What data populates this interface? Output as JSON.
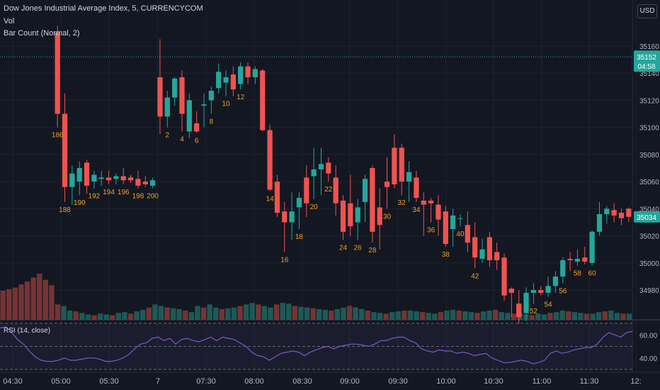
{
  "header": {
    "title": "Dow Jones Industrial Average Index, 5, CURRENCYCOM",
    "vol_label": "Vol",
    "bar_count_label": "Bar Count (Normal, 2)",
    "currency": "USD",
    "rsi_label": "RSI (14, close)"
  },
  "colors": {
    "background": "#131722",
    "up": "#26a69a",
    "down": "#ef5350",
    "bar_count_text": "#f0a020",
    "rsi_line": "#7e57c2",
    "grid": "#1e222d"
  },
  "price_axis": {
    "ticks": [
      "35160",
      "35140",
      "35120",
      "35100",
      "35080",
      "35060",
      "35040",
      "35020",
      "35000",
      "34980"
    ],
    "current_price": "35152",
    "countdown": "04:58",
    "last_price": "35034"
  },
  "rsi_axis": {
    "ticks": [
      "60.00",
      "40.00"
    ]
  },
  "time_axis": {
    "labels": [
      "04:30",
      "05:00",
      "05:30",
      "7",
      "07:30",
      "08:00",
      "08:30",
      "09:00",
      "09:30",
      "10:00",
      "10:30",
      "11:00",
      "11:30",
      "12:"
    ]
  },
  "chart_data": [
    {
      "type": "candlestick",
      "title": "Dow Jones Industrial Average Index, 5, CURRENCYCOM",
      "ylim": [
        34968,
        35172
      ],
      "ticks_y": [
        34980,
        35000,
        35020,
        35040,
        35060,
        35080,
        35100,
        35120,
        35140,
        35160
      ],
      "candles": [
        {
          "o": 35170,
          "h": 35175,
          "l": 35100,
          "c": 35110
        },
        {
          "o": 35110,
          "h": 35125,
          "l": 35045,
          "c": 35056
        },
        {
          "o": 35056,
          "h": 35072,
          "l": 35043,
          "c": 35066
        },
        {
          "o": 35060,
          "h": 35075,
          "l": 35050,
          "c": 35070
        },
        {
          "o": 35074,
          "h": 35076,
          "l": 35051,
          "c": 35057
        },
        {
          "o": 35060,
          "h": 35068,
          "l": 35055,
          "c": 35065
        },
        {
          "o": 35062,
          "h": 35068,
          "l": 35057,
          "c": 35063
        },
        {
          "o": 35063,
          "h": 35068,
          "l": 35058,
          "c": 35061
        },
        {
          "o": 35062,
          "h": 35066,
          "l": 35058,
          "c": 35064
        },
        {
          "o": 35064,
          "h": 35070,
          "l": 35058,
          "c": 35061
        },
        {
          "o": 35063,
          "h": 35065,
          "l": 35059,
          "c": 35061
        },
        {
          "o": 35062,
          "h": 35068,
          "l": 35055,
          "c": 35057
        },
        {
          "o": 35060,
          "h": 35064,
          "l": 35056,
          "c": 35058
        },
        {
          "o": 35057,
          "h": 35063,
          "l": 35055,
          "c": 35061
        },
        {
          "o": 35137,
          "h": 35165,
          "l": 35095,
          "c": 35108
        },
        {
          "o": 35108,
          "h": 35127,
          "l": 35100,
          "c": 35122
        },
        {
          "o": 35122,
          "h": 35137,
          "l": 35116,
          "c": 35136
        },
        {
          "o": 35137,
          "h": 35142,
          "l": 35097,
          "c": 35110
        },
        {
          "o": 35097,
          "h": 35125,
          "l": 35092,
          "c": 35120
        },
        {
          "o": 35103,
          "h": 35112,
          "l": 35096,
          "c": 35097
        },
        {
          "o": 35116,
          "h": 35125,
          "l": 35100,
          "c": 35117
        },
        {
          "o": 35120,
          "h": 35130,
          "l": 35110,
          "c": 35127
        },
        {
          "o": 35129,
          "h": 35147,
          "l": 35125,
          "c": 35141
        },
        {
          "o": 35133,
          "h": 35142,
          "l": 35123,
          "c": 35137
        },
        {
          "o": 35139,
          "h": 35145,
          "l": 35123,
          "c": 35128
        },
        {
          "o": 35132,
          "h": 35148,
          "l": 35128,
          "c": 35145
        },
        {
          "o": 35145,
          "h": 35148,
          "l": 35132,
          "c": 35137
        },
        {
          "o": 35137,
          "h": 35145,
          "l": 35132,
          "c": 35143
        },
        {
          "o": 35142,
          "h": 35143,
          "l": 35097,
          "c": 35098
        },
        {
          "o": 35098,
          "h": 35102,
          "l": 35053,
          "c": 35054
        },
        {
          "o": 35060,
          "h": 35065,
          "l": 35034,
          "c": 35037
        },
        {
          "o": 35038,
          "h": 35045,
          "l": 35008,
          "c": 35030
        },
        {
          "o": 35030,
          "h": 35052,
          "l": 35017,
          "c": 35038
        },
        {
          "o": 35041,
          "h": 35052,
          "l": 35025,
          "c": 35048
        },
        {
          "o": 35063,
          "h": 35072,
          "l": 35034,
          "c": 35044
        },
        {
          "o": 35064,
          "h": 35085,
          "l": 35047,
          "c": 35069
        },
        {
          "o": 35069,
          "h": 35085,
          "l": 35050,
          "c": 35073
        },
        {
          "o": 35074,
          "h": 35078,
          "l": 35060,
          "c": 35066
        },
        {
          "o": 35063,
          "h": 35072,
          "l": 35035,
          "c": 35044
        },
        {
          "o": 35046,
          "h": 35050,
          "l": 35017,
          "c": 35023
        },
        {
          "o": 35044,
          "h": 35065,
          "l": 35020,
          "c": 35027
        },
        {
          "o": 35030,
          "h": 35047,
          "l": 35017,
          "c": 35041
        },
        {
          "o": 35045,
          "h": 35065,
          "l": 35030,
          "c": 35062
        },
        {
          "o": 35070,
          "h": 35072,
          "l": 35015,
          "c": 35023
        },
        {
          "o": 35041,
          "h": 35055,
          "l": 35010,
          "c": 35028
        },
        {
          "o": 35060,
          "h": 35078,
          "l": 35040,
          "c": 35056
        },
        {
          "o": 35085,
          "h": 35095,
          "l": 35055,
          "c": 35058
        },
        {
          "o": 35085,
          "h": 35088,
          "l": 35050,
          "c": 35060
        },
        {
          "o": 35060,
          "h": 35075,
          "l": 35045,
          "c": 35067
        },
        {
          "o": 35063,
          "h": 35068,
          "l": 35045,
          "c": 35048
        },
        {
          "o": 35046,
          "h": 35052,
          "l": 35020,
          "c": 35043
        },
        {
          "o": 35046,
          "h": 35048,
          "l": 35030,
          "c": 35044
        },
        {
          "o": 35043,
          "h": 35050,
          "l": 35020,
          "c": 35032
        },
        {
          "o": 35038,
          "h": 35042,
          "l": 35012,
          "c": 35014
        },
        {
          "o": 35025,
          "h": 35040,
          "l": 35012,
          "c": 35035
        },
        {
          "o": 35033,
          "h": 35036,
          "l": 35027,
          "c": 35033
        },
        {
          "o": 35028,
          "h": 35038,
          "l": 35008,
          "c": 35015
        },
        {
          "o": 35019,
          "h": 35030,
          "l": 34996,
          "c": 35004
        },
        {
          "o": 35003,
          "h": 35018,
          "l": 35000,
          "c": 35010
        },
        {
          "o": 35019,
          "h": 35023,
          "l": 34997,
          "c": 35002
        },
        {
          "o": 35008,
          "h": 35015,
          "l": 34995,
          "c": 35002
        },
        {
          "o": 35004,
          "h": 35007,
          "l": 34972,
          "c": 34976
        },
        {
          "o": 34981,
          "h": 34982,
          "l": 34960,
          "c": 34978
        },
        {
          "o": 34970,
          "h": 34980,
          "l": 34955,
          "c": 34960
        },
        {
          "o": 34963,
          "h": 34982,
          "l": 34957,
          "c": 34978
        },
        {
          "o": 34978,
          "h": 34985,
          "l": 34970,
          "c": 34980
        },
        {
          "o": 34980,
          "h": 34983,
          "l": 34976,
          "c": 34978
        },
        {
          "o": 34978,
          "h": 34990,
          "l": 34975,
          "c": 34983
        },
        {
          "o": 34983,
          "h": 34994,
          "l": 34978,
          "c": 34990
        },
        {
          "o": 34990,
          "h": 35004,
          "l": 34985,
          "c": 35002
        },
        {
          "o": 35003,
          "h": 35008,
          "l": 34994,
          "c": 35002
        },
        {
          "o": 35001,
          "h": 35010,
          "l": 34998,
          "c": 35003
        },
        {
          "o": 35004,
          "h": 35012,
          "l": 34999,
          "c": 35001
        },
        {
          "o": 35000,
          "h": 35024,
          "l": 34998,
          "c": 35023
        },
        {
          "o": 35023,
          "h": 35045,
          "l": 35020,
          "c": 35036
        },
        {
          "o": 35036,
          "h": 35042,
          "l": 35029,
          "c": 35040
        },
        {
          "o": 35039,
          "h": 35044,
          "l": 35030,
          "c": 35035
        },
        {
          "o": 35037,
          "h": 35040,
          "l": 35028,
          "c": 35033
        },
        {
          "o": 35040,
          "h": 35041,
          "l": 35030,
          "c": 35034
        }
      ],
      "bar_count_labels": [
        {
          "i": 0,
          "text": "186"
        },
        {
          "i": 1,
          "text": "188"
        },
        {
          "i": 3,
          "text": "190"
        },
        {
          "i": 5,
          "text": "192"
        },
        {
          "i": 7,
          "text": "194"
        },
        {
          "i": 9,
          "text": "196"
        },
        {
          "i": 11,
          "text": "198"
        },
        {
          "i": 13,
          "text": "200"
        },
        {
          "i": 15,
          "text": "2"
        },
        {
          "i": 17,
          "text": "4"
        },
        {
          "i": 19,
          "text": "6"
        },
        {
          "i": 21,
          "text": "8"
        },
        {
          "i": 23,
          "text": "10"
        },
        {
          "i": 25,
          "text": "12"
        },
        {
          "i": 29,
          "text": "14"
        },
        {
          "i": 31,
          "text": "16"
        },
        {
          "i": 33,
          "text": "18"
        },
        {
          "i": 35,
          "text": "20"
        },
        {
          "i": 37,
          "text": "22"
        },
        {
          "i": 39,
          "text": "24"
        },
        {
          "i": 41,
          "text": "26"
        },
        {
          "i": 43,
          "text": "28"
        },
        {
          "i": 45,
          "text": "30"
        },
        {
          "i": 47,
          "text": "32"
        },
        {
          "i": 49,
          "text": "34"
        },
        {
          "i": 51,
          "text": "36"
        },
        {
          "i": 53,
          "text": "38"
        },
        {
          "i": 55,
          "text": "40"
        },
        {
          "i": 57,
          "text": "42"
        },
        {
          "i": 65,
          "text": "52"
        },
        {
          "i": 67,
          "text": "54"
        },
        {
          "i": 69,
          "text": "56"
        },
        {
          "i": 71,
          "text": "58"
        },
        {
          "i": 73,
          "text": "60"
        }
      ]
    },
    {
      "type": "bar",
      "title": "Vol",
      "values": [
        38,
        40,
        42,
        46,
        50,
        55,
        60,
        52,
        45,
        20,
        18,
        12,
        11,
        9,
        7,
        6,
        8,
        7,
        6,
        9,
        10,
        8,
        11,
        13,
        16,
        20,
        18,
        16,
        15,
        14,
        12,
        10,
        18,
        16,
        20,
        16,
        14,
        15,
        16,
        18,
        20,
        22,
        20,
        18,
        16,
        20,
        22,
        21,
        18,
        17,
        16,
        15,
        14,
        13,
        12,
        14,
        16,
        18,
        16,
        14,
        12,
        10,
        9,
        8,
        10,
        11,
        12,
        12,
        11,
        10,
        9,
        8,
        10,
        12,
        13,
        12,
        11,
        10,
        9,
        11,
        12,
        13,
        10,
        9,
        8,
        9,
        7,
        6,
        8,
        7,
        9,
        10,
        12,
        11,
        10,
        9,
        8,
        8,
        10,
        11,
        12,
        9,
        8,
        8
      ]
    },
    {
      "type": "line",
      "title": "RSI (14, close)",
      "ylim": [
        30,
        70
      ],
      "bands": [
        30,
        50,
        70
      ],
      "values": [
        66,
        67,
        62,
        56,
        52,
        46,
        41,
        38,
        37,
        37,
        38,
        40,
        38,
        38,
        39,
        40,
        40,
        39,
        37,
        37,
        38,
        40,
        43,
        48,
        52,
        53,
        57,
        58,
        55,
        57,
        52,
        56,
        57,
        55,
        54,
        56,
        58,
        55,
        58,
        57,
        56,
        53,
        50,
        45,
        42,
        41,
        38,
        41,
        44,
        45,
        46,
        45,
        42,
        45,
        47,
        49,
        50,
        48,
        50,
        51,
        52,
        52,
        51,
        50,
        52,
        55,
        55,
        57,
        58,
        58,
        55,
        53,
        48,
        46,
        45,
        47,
        46,
        46,
        44,
        45,
        44,
        42,
        43,
        44,
        40,
        38,
        36,
        36,
        37,
        38,
        37,
        35,
        36,
        38,
        44,
        46,
        44,
        45,
        47,
        48,
        49,
        49,
        52,
        58,
        62,
        60,
        58,
        62,
        63
      ]
    }
  ]
}
